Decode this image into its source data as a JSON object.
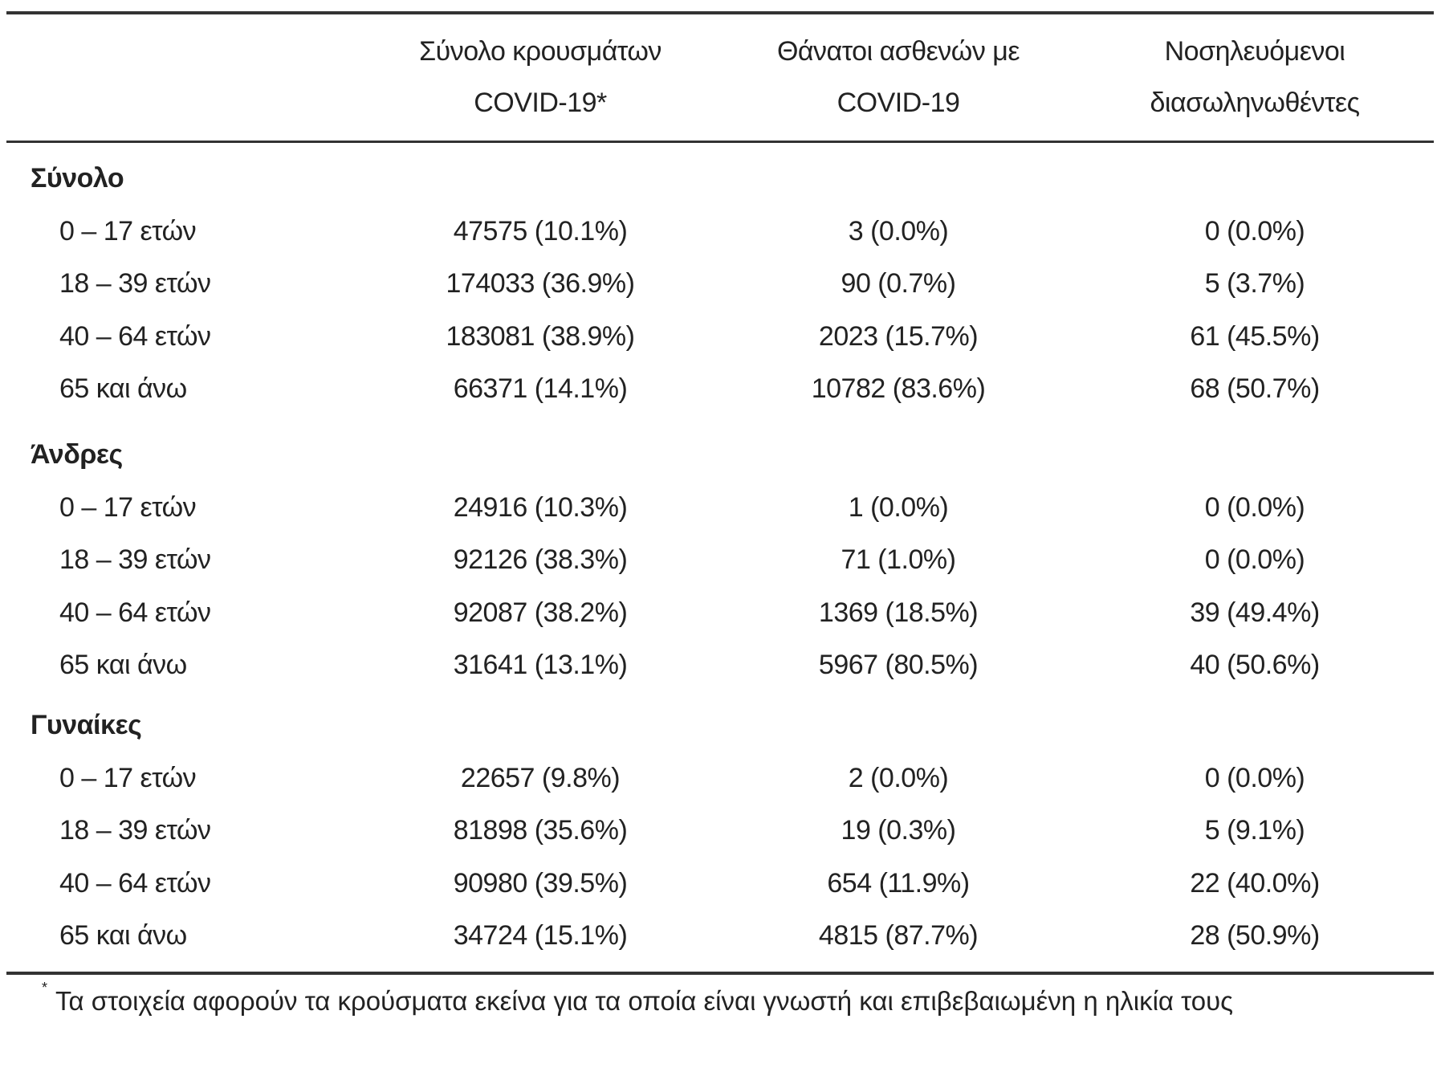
{
  "table": {
    "columns": [
      "Σύνολο κρουσμάτων COVID-19*",
      "Θάνατοι ασθενών με COVID-19",
      "Νοσηλευόμενοι διασωληνωθέντες"
    ],
    "groups": [
      {
        "title": "Σύνολο",
        "rows": [
          [
            "0 – 17 ετών",
            "47575 (10.1%)",
            "3 (0.0%)",
            "0 (0.0%)"
          ],
          [
            "18 – 39 ετών",
            "174033 (36.9%)",
            "90 (0.7%)",
            "5 (3.7%)"
          ],
          [
            "40 – 64 ετών",
            "183081 (38.9%)",
            "2023 (15.7%)",
            "61 (45.5%)"
          ],
          [
            "65 και άνω",
            "66371 (14.1%)",
            "10782 (83.6%)",
            "68 (50.7%)"
          ]
        ]
      },
      {
        "title": "Άνδρες",
        "rows": [
          [
            "0 – 17 ετών",
            "24916 (10.3%)",
            "1 (0.0%)",
            "0 (0.0%)"
          ],
          [
            "18 – 39 ετών",
            "92126 (38.3%)",
            "71 (1.0%)",
            "0 (0.0%)"
          ],
          [
            "40 – 64 ετών",
            "92087 (38.2%)",
            "1369 (18.5%)",
            "39 (49.4%)"
          ],
          [
            "65 και άνω",
            "31641 (13.1%)",
            "5967 (80.5%)",
            "40 (50.6%)"
          ]
        ]
      },
      {
        "title": "Γυναίκες",
        "rows": [
          [
            "0 – 17 ετών",
            "22657 (9.8%)",
            "2 (0.0%)",
            "0 (0.0%)"
          ],
          [
            "18 – 39 ετών",
            "81898 (35.6%)",
            "19 (0.3%)",
            "5 (9.1%)"
          ],
          [
            "40 – 64 ετών",
            "90980 (39.5%)",
            "654 (11.9%)",
            "22 (40.0%)"
          ],
          [
            "65 και άνω",
            "34724 (15.1%)",
            "4815 (87.7%)",
            "28 (50.9%)"
          ]
        ]
      }
    ],
    "footnote": {
      "marker": "*",
      "text": "Τα στοιχεία αφορούν τα κρούσματα εκείνα για τα οποία είναι γνωστή και επιβεβαιωμένη η ηλικία τους"
    }
  }
}
